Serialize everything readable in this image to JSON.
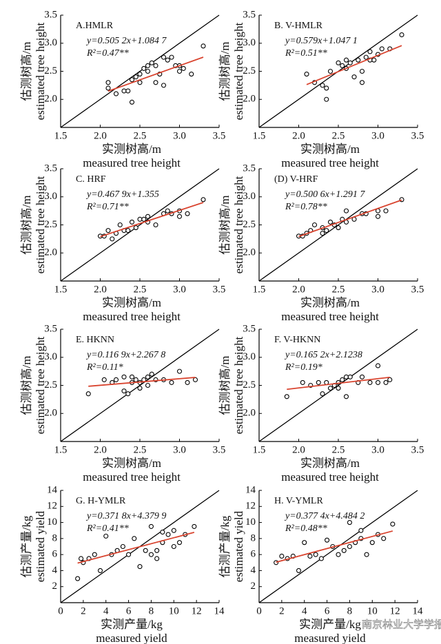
{
  "chart_data": [
    {
      "type": "scatter",
      "title": "A.HMLR",
      "equation": "y=0.505 2x+1.084 7",
      "r2": "R²=0.47**",
      "fit": {
        "slope": 0.5052,
        "intercept": 1.0847,
        "color": "#d9442f"
      },
      "color": "#000000",
      "x": [
        2.1,
        2.1,
        2.2,
        2.3,
        2.35,
        2.4,
        2.4,
        2.45,
        2.5,
        2.5,
        2.55,
        2.6,
        2.6,
        2.65,
        2.7,
        2.7,
        2.75,
        2.8,
        2.8,
        2.85,
        2.9,
        2.95,
        3.0,
        3.0,
        3.05,
        3.15,
        3.3
      ],
      "y": [
        2.3,
        2.2,
        2.1,
        2.15,
        2.15,
        1.95,
        2.35,
        2.4,
        2.45,
        2.3,
        2.55,
        2.6,
        2.5,
        2.65,
        2.3,
        2.6,
        2.45,
        2.25,
        2.75,
        2.7,
        2.75,
        2.6,
        2.5,
        2.6,
        2.55,
        2.45,
        2.95
      ],
      "xlim": [
        1.5,
        3.5
      ],
      "ylim": [
        1.5,
        3.5
      ],
      "xticks": [
        1.5,
        {
          "value": 2,
          "label": "2.0"
        },
        2.5,
        {
          "value": 3,
          "label": "3.0"
        },
        3.5
      ],
      "yticks": [
        {
          "value": 2,
          "label": "2.0"
        },
        2.5,
        {
          "value": 3,
          "label": "3.0"
        },
        3.5
      ],
      "xlabel": [
        "实测树高/m",
        "measured tree height"
      ],
      "ylabel": [
        "估测树高/m",
        "estimated tree height"
      ]
    },
    {
      "type": "scatter",
      "title": "B. V-HMLR",
      "equation": "y=0.579x+1.047 1",
      "r2": "R²=0.51**",
      "fit": {
        "slope": 0.579,
        "intercept": 1.0471,
        "color": "#d9442f"
      },
      "color": "#000000",
      "x": [
        2.1,
        2.2,
        2.3,
        2.35,
        2.35,
        2.4,
        2.5,
        2.55,
        2.6,
        2.6,
        2.65,
        2.7,
        2.75,
        2.8,
        2.8,
        2.85,
        2.9,
        2.9,
        2.95,
        3.0,
        3.05,
        3.15,
        3.3
      ],
      "y": [
        2.45,
        2.3,
        2.25,
        2.2,
        2.0,
        2.5,
        2.65,
        2.6,
        2.7,
        2.55,
        2.65,
        2.4,
        2.7,
        2.3,
        2.5,
        2.75,
        2.85,
        2.7,
        2.7,
        2.8,
        2.9,
        2.9,
        3.15
      ],
      "xlim": [
        1.5,
        3.5
      ],
      "ylim": [
        1.5,
        3.5
      ],
      "xticks": [
        1.5,
        {
          "value": 2,
          "label": "2.0"
        },
        2.5,
        {
          "value": 3,
          "label": "3.0"
        },
        3.5
      ],
      "yticks": [
        {
          "value": 2,
          "label": "2.0"
        },
        2.5,
        {
          "value": 3,
          "label": "3.0"
        },
        3.5
      ],
      "xlabel": [
        "实测树高/m",
        "measured tree height"
      ],
      "ylabel": [
        "估测树高/m",
        "estimated tree height"
      ]
    },
    {
      "type": "scatter",
      "title": "C. HRF",
      "equation": "y=0.467 9x+1.355",
      "r2": "R²=0.71**",
      "fit": {
        "slope": 0.4679,
        "intercept": 1.355,
        "color": "#d9442f"
      },
      "color": "#000000",
      "x": [
        2.0,
        2.05,
        2.1,
        2.15,
        2.2,
        2.25,
        2.3,
        2.35,
        2.4,
        2.45,
        2.5,
        2.55,
        2.6,
        2.6,
        2.7,
        2.8,
        2.85,
        2.9,
        3.0,
        3.0,
        3.1,
        3.3
      ],
      "y": [
        2.3,
        2.3,
        2.4,
        2.25,
        2.35,
        2.5,
        2.4,
        2.4,
        2.55,
        2.45,
        2.6,
        2.6,
        2.65,
        2.55,
        2.5,
        2.7,
        2.75,
        2.7,
        2.65,
        2.75,
        2.7,
        2.95
      ],
      "xlim": [
        1.5,
        3.5
      ],
      "ylim": [
        1.5,
        3.5
      ],
      "xticks": [
        1.5,
        {
          "value": 2,
          "label": "2.0"
        },
        2.5,
        {
          "value": 3,
          "label": "3.0"
        },
        3.5
      ],
      "yticks": [
        {
          "value": 2,
          "label": "2.0"
        },
        2.5,
        {
          "value": 3,
          "label": "3.0"
        },
        3.5
      ],
      "xlabel": [
        "实测树高/m",
        "measured tree height"
      ],
      "ylabel": [
        "估测树高/m",
        "estimated tree height"
      ]
    },
    {
      "type": "scatter",
      "title": "(D) V-HRF",
      "equation": "y=0.500 6x+1.291 7",
      "r2": "R²=0.78**",
      "fit": {
        "slope": 0.5006,
        "intercept": 1.2917,
        "color": "#d9442f"
      },
      "color": "#000000",
      "x": [
        2.0,
        2.05,
        2.1,
        2.15,
        2.2,
        2.3,
        2.3,
        2.35,
        2.4,
        2.45,
        2.5,
        2.55,
        2.6,
        2.6,
        2.7,
        2.8,
        2.85,
        3.0,
        3.0,
        3.1,
        3.3
      ],
      "y": [
        2.3,
        2.3,
        2.35,
        2.4,
        2.5,
        2.45,
        2.35,
        2.4,
        2.55,
        2.5,
        2.45,
        2.6,
        2.75,
        2.55,
        2.6,
        2.7,
        2.7,
        2.75,
        2.65,
        2.75,
        2.95
      ],
      "xlim": [
        1.5,
        3.5
      ],
      "ylim": [
        1.5,
        3.5
      ],
      "xticks": [
        1.5,
        {
          "value": 2,
          "label": "2.0"
        },
        2.5,
        {
          "value": 3,
          "label": "3.0"
        },
        3.5
      ],
      "yticks": [
        {
          "value": 2,
          "label": "2.0"
        },
        2.5,
        {
          "value": 3,
          "label": "3.0"
        },
        3.5
      ],
      "xlabel": [
        "实测树高/m",
        "measured tree height"
      ],
      "ylabel": [
        "估测树高/m",
        "estimated tree height"
      ]
    },
    {
      "type": "scatter",
      "title": "E. HKNN",
      "equation": "y=0.116 9x+2.267 8",
      "r2": "R²=0.11*",
      "fit": {
        "slope": 0.1169,
        "intercept": 2.2678,
        "color": "#d9442f"
      },
      "color": "#000000",
      "x": [
        1.85,
        2.05,
        2.15,
        2.2,
        2.3,
        2.3,
        2.35,
        2.4,
        2.4,
        2.45,
        2.5,
        2.5,
        2.55,
        2.6,
        2.6,
        2.65,
        2.7,
        2.8,
        2.9,
        3.0,
        3.1,
        3.2
      ],
      "y": [
        2.35,
        2.6,
        2.55,
        2.6,
        2.65,
        2.4,
        2.35,
        2.55,
        2.65,
        2.6,
        2.55,
        2.45,
        2.6,
        2.65,
        2.5,
        2.7,
        2.6,
        2.6,
        2.55,
        2.75,
        2.55,
        2.6
      ],
      "xlim": [
        1.5,
        3.5
      ],
      "ylim": [
        1.5,
        3.5
      ],
      "xticks": [
        1.5,
        {
          "value": 2,
          "label": "2.0"
        },
        2.5,
        {
          "value": 3,
          "label": "3.0"
        },
        3.5
      ],
      "yticks": [
        {
          "value": 2,
          "label": "2.0"
        },
        2.5,
        {
          "value": 3,
          "label": "3.0"
        },
        3.5
      ],
      "xlabel": [
        "实测树高/m",
        "measured tree height"
      ],
      "ylabel": [
        "估测树高/m",
        "estimated tree height"
      ]
    },
    {
      "type": "scatter",
      "title": "F. V-HKNN",
      "equation": "y=0.165 2x+2.1238",
      "r2": "R²=0.19*",
      "fit": {
        "slope": 0.1652,
        "intercept": 2.1238,
        "color": "#d9442f"
      },
      "color": "#000000",
      "x": [
        1.85,
        2.05,
        2.15,
        2.25,
        2.3,
        2.35,
        2.4,
        2.45,
        2.5,
        2.5,
        2.55,
        2.6,
        2.6,
        2.65,
        2.75,
        2.8,
        2.9,
        3.0,
        3.0,
        3.1,
        3.15
      ],
      "y": [
        2.3,
        2.55,
        2.5,
        2.55,
        2.35,
        2.55,
        2.45,
        2.5,
        2.55,
        2.45,
        2.6,
        2.65,
        2.3,
        2.65,
        2.55,
        2.65,
        2.55,
        2.85,
        2.55,
        2.55,
        2.6
      ],
      "xlim": [
        1.5,
        3.5
      ],
      "ylim": [
        1.5,
        3.5
      ],
      "xticks": [
        1.5,
        {
          "value": 2,
          "label": "2.0"
        },
        2.5,
        {
          "value": 3,
          "label": "3.0"
        },
        3.5
      ],
      "yticks": [
        {
          "value": 2,
          "label": "2.0"
        },
        2.5,
        {
          "value": 3,
          "label": "3.0"
        },
        3.5
      ],
      "xlabel": [
        "实测树高/m",
        "measured tree height"
      ],
      "ylabel": [
        "估测树高/m",
        "estimated tree height"
      ]
    },
    {
      "type": "scatter",
      "title": "G. H-YMLR",
      "equation": "y=0.371 8x+4.379 9",
      "r2": "R²=0.41**",
      "fit": {
        "slope": 0.3718,
        "intercept": 4.3799,
        "color": "#d9442f"
      },
      "color": "#000000",
      "x": [
        1.5,
        1.8,
        2,
        2.5,
        3,
        3.5,
        4,
        4.5,
        5,
        5.5,
        6,
        6.5,
        7,
        7.5,
        8,
        8,
        8.5,
        8.5,
        9,
        9,
        9.5,
        10,
        10,
        10.5,
        11,
        11.8
      ],
      "y": [
        3,
        5.5,
        5,
        5.5,
        6,
        4,
        8.3,
        6,
        6.5,
        7,
        6,
        8,
        4.5,
        6.5,
        9.5,
        6,
        5.5,
        6.5,
        8.8,
        7.5,
        8.5,
        7,
        9,
        7.5,
        8.5,
        9.5
      ],
      "xlim": [
        0,
        14
      ],
      "ylim": [
        0,
        14
      ],
      "xticks": [
        0,
        2,
        4,
        6,
        8,
        10,
        12,
        14
      ],
      "yticks": [
        2,
        4,
        6,
        8,
        10,
        12,
        14
      ],
      "xlabel": [
        "实测产量/kg",
        "measured yield"
      ],
      "ylabel": [
        "估测产量/kg",
        "estimated yield"
      ]
    },
    {
      "type": "scatter",
      "title": "H. V-YMLR",
      "equation": "y=0.377 4x+4.484 2",
      "r2": "R²=0.48**",
      "fit": {
        "slope": 0.3774,
        "intercept": 4.4842,
        "color": "#d9442f"
      },
      "color": "#000000",
      "x": [
        1.5,
        2,
        2.5,
        3,
        3.5,
        4,
        4.5,
        5,
        5.5,
        6,
        6.5,
        7,
        7.5,
        8,
        8,
        8.5,
        9,
        9,
        9.5,
        10,
        10.5,
        11,
        11.8
      ],
      "y": [
        5,
        5.8,
        5.5,
        5.8,
        4,
        7.5,
        5.8,
        6,
        5.5,
        7.8,
        7,
        6,
        6.5,
        10,
        7,
        7.5,
        9,
        8,
        6,
        7.5,
        8.5,
        8,
        9.8
      ],
      "xlim": [
        0,
        14
      ],
      "ylim": [
        0,
        14
      ],
      "xticks": [
        0,
        2,
        4,
        6,
        8,
        10,
        12,
        14
      ],
      "yticks": [
        2,
        4,
        6,
        8,
        10,
        12,
        14
      ],
      "xlabel": [
        "实测产量/kg",
        "measured yield"
      ],
      "ylabel": [
        "估测产量/kg",
        "estimated yield"
      ]
    }
  ],
  "watermark": "南京林业大学学报"
}
